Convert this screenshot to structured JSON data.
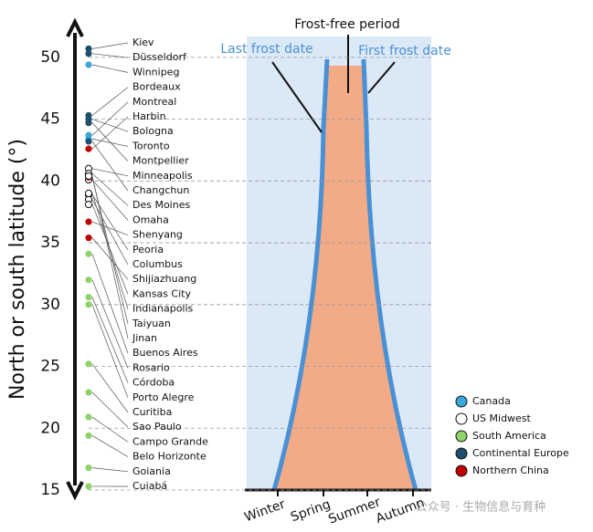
{
  "chart_data": {
    "type": "scatter",
    "y_label": "North or south latitude (°)",
    "ylim": [
      15,
      52.5
    ],
    "yticks": [
      15,
      20,
      25,
      30,
      35,
      40,
      45,
      50
    ],
    "grid": true,
    "groups": [
      {
        "name": "Canada",
        "color": "#3aa6dc"
      },
      {
        "name": "US Midwest",
        "color": "#ffffff"
      },
      {
        "name": "South America",
        "color": "#8fd16a"
      },
      {
        "name": "Continental Europe",
        "color": "#1b4f6b"
      },
      {
        "name": "Northern China",
        "color": "#c00000"
      }
    ],
    "points": [
      {
        "name": "Kiev",
        "group": "Continental Europe",
        "value": 50.7
      },
      {
        "name": "Düsseldorf",
        "group": "Continental Europe",
        "value": 50.3
      },
      {
        "name": "Winnipeg",
        "group": "Canada",
        "value": 49.4
      },
      {
        "name": "Bordeaux",
        "group": "Continental Europe",
        "value": 45.3
      },
      {
        "name": "Montreal",
        "group": "Canada",
        "value": 43.7
      },
      {
        "name": "Harbin",
        "group": "Northern China",
        "value": 42.6
      },
      {
        "name": "Bologna",
        "group": "Continental Europe",
        "value": 45.0
      },
      {
        "name": "Toronto",
        "group": "Canada",
        "value": 43.4
      },
      {
        "name": "Montpellier",
        "group": "Continental Europe",
        "value": 44.7
      },
      {
        "name": "Minneapolis",
        "group": "US Midwest",
        "value": 41.0
      },
      {
        "name": "Changchun",
        "group": "Continental Europe",
        "value": 43.2
      },
      {
        "name": "Des Moines",
        "group": "US Midwest",
        "value": 40.6
      },
      {
        "name": "Omaha",
        "group": "US Midwest",
        "value": 40.1
      },
      {
        "name": "Shenyang",
        "group": "Northern China",
        "value": 36.7
      },
      {
        "name": "Peoria",
        "group": "US Midwest",
        "value": 38.9
      },
      {
        "name": "Columbus",
        "group": "US Midwest",
        "value": 38.5
      },
      {
        "name": "Shijiazhuang",
        "group": "Northern China",
        "value": 35.4
      },
      {
        "name": "Kansas City",
        "group": "US Midwest",
        "value": 38.1
      },
      {
        "name": "Indianapolis",
        "group": "US Midwest",
        "value": 39.0
      },
      {
        "name": "Taiyuan",
        "group": "Northern China",
        "value": 40.3
      },
      {
        "name": "Jinan",
        "group": "US Midwest",
        "value": 40.4
      },
      {
        "name": "Buenos Aires",
        "group": "South America",
        "value": 34.1
      },
      {
        "name": "Rosario",
        "group": "South America",
        "value": 32.0
      },
      {
        "name": "Córdoba",
        "group": "South America",
        "value": 30.6
      },
      {
        "name": "Porto Alegre",
        "group": "South America",
        "value": 30.0
      },
      {
        "name": "Curitiba",
        "group": "South America",
        "value": 25.2
      },
      {
        "name": "Sao Paulo",
        "group": "South America",
        "value": 22.9
      },
      {
        "name": "Campo Grande",
        "group": "South America",
        "value": 20.9
      },
      {
        "name": "Belo Horizonte",
        "group": "South America",
        "value": 19.4
      },
      {
        "name": "Goiania",
        "group": "South America",
        "value": 16.8
      },
      {
        "name": "Cuiabá",
        "group": "South America",
        "value": 15.3
      }
    ],
    "diagram": {
      "title": "Frost-free period",
      "left_label": "Last frost date",
      "right_label": "First frost date",
      "seasons": [
        "Winter",
        "Spring",
        "Summer",
        "Autumn"
      ]
    },
    "watermark": "公众号 · 生物信息与育种"
  }
}
